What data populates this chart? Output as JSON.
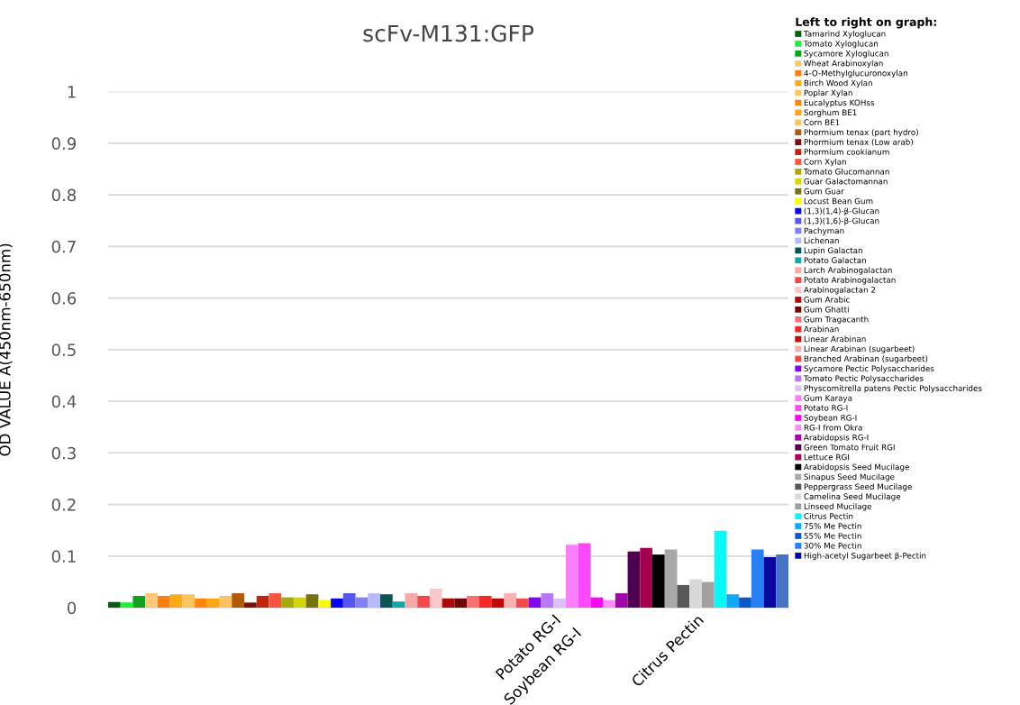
{
  "chart_data": {
    "type": "bar",
    "title": "scFv-M131:GFP",
    "ylabel": "OD VALUE A(450nm-650nm)",
    "legend_title": "Left to right on graph:",
    "legend": "right",
    "grid": "y",
    "categories": [
      null
    ],
    "ylim": [
      0,
      1
    ],
    "yticks": [
      0,
      0.1,
      0.2,
      0.3,
      0.4,
      0.5,
      0.6,
      0.7,
      0.8,
      0.9,
      1
    ],
    "annotations": [
      "Potato RG-I",
      "Soybean RG-I",
      "Citrus Pectin"
    ],
    "series": [
      {
        "name": "Tamarind Xyloglucan",
        "color": "#0b5a16",
        "values": [
          0.011
        ]
      },
      {
        "name": "Tomato Xyloglucan",
        "color": "#22ee33",
        "values": [
          0.01
        ]
      },
      {
        "name": "Sycamore Xyloglucan",
        "color": "#13a020",
        "values": [
          0.023
        ]
      },
      {
        "name": "Wheat Arabinoxylan",
        "color": "#fcc878",
        "values": [
          0.028
        ]
      },
      {
        "name": "4-O-Methylglucuronoxylan",
        "color": "#fd7f10",
        "values": [
          0.023
        ]
      },
      {
        "name": "Birch Wood Xylan",
        "color": "#fdaa15",
        "values": [
          0.026
        ]
      },
      {
        "name": "Poplar Xylan",
        "color": "#fdc462",
        "values": [
          0.026
        ]
      },
      {
        "name": "Eucalyptus KOHss",
        "color": "#fd8510",
        "values": [
          0.018
        ]
      },
      {
        "name": "Sorghum BE1",
        "color": "#fda615",
        "values": [
          0.018
        ]
      },
      {
        "name": "Corn BE1",
        "color": "#fcc264",
        "values": [
          0.023
        ]
      },
      {
        "name": "Phormium tenax (part hydro)",
        "color": "#b05a0a",
        "values": [
          0.028
        ]
      },
      {
        "name": "Phormium tenax (Low arab)",
        "color": "#7a1010",
        "values": [
          0.01
        ]
      },
      {
        "name": "Phormium cookianum",
        "color": "#c02510",
        "values": [
          0.023
        ]
      },
      {
        "name": "Corn Xylan",
        "color": "#f65540",
        "values": [
          0.028
        ]
      },
      {
        "name": "Tomato Glucomannan",
        "color": "#a8a808",
        "values": [
          0.02
        ]
      },
      {
        "name": "Guar Galactomannan",
        "color": "#d4d408",
        "values": [
          0.02
        ]
      },
      {
        "name": "Gum Guar",
        "color": "#737313",
        "values": [
          0.026
        ]
      },
      {
        "name": "Locust Bean Gum",
        "color": "#fafa08",
        "values": [
          0.015
        ]
      },
      {
        "name": "(1,3)(1,4)-β-Glucan",
        "color": "#0808f0",
        "values": [
          0.018
        ]
      },
      {
        "name": "(1,3)(1,6)-β-Glucan",
        "color": "#5555f5",
        "values": [
          0.028
        ]
      },
      {
        "name": "Pachyman",
        "color": "#8080f8",
        "values": [
          0.02
        ]
      },
      {
        "name": "Lichenan",
        "color": "#b8b8fa",
        "values": [
          0.028
        ]
      },
      {
        "name": "Lupin Galactan",
        "color": "#0b5555",
        "values": [
          0.026
        ]
      },
      {
        "name": "Potato Galactan",
        "color": "#10a8a8",
        "values": [
          0.012
        ]
      },
      {
        "name": "Larch Arabinogalactan",
        "color": "#f8a8a8",
        "values": [
          0.028
        ]
      },
      {
        "name": "Potato Arabinogalactan",
        "color": "#f54848",
        "values": [
          0.023
        ]
      },
      {
        "name": "Arabinogalactan 2",
        "color": "#fac8c8",
        "values": [
          0.037
        ]
      },
      {
        "name": "Gum Arabic",
        "color": "#b00808",
        "values": [
          0.018
        ]
      },
      {
        "name": "Gum Ghatti",
        "color": "#700808",
        "values": [
          0.018
        ]
      },
      {
        "name": "Gum Tragacanth",
        "color": "#f87070",
        "values": [
          0.023
        ]
      },
      {
        "name": "Arabinan",
        "color": "#f52828",
        "values": [
          0.023
        ]
      },
      {
        "name": "Linear Arabinan",
        "color": "#c00808",
        "values": [
          0.018
        ]
      },
      {
        "name": "Linear Arabinan (sugarbeet)",
        "color": "#f8b0b0",
        "values": [
          0.028
        ]
      },
      {
        "name": "Branched Arabinan (sugarbeet)",
        "color": "#f54848",
        "values": [
          0.018
        ]
      },
      {
        "name": "Sycamore Pectic Polysaccharides",
        "color": "#8008f5",
        "values": [
          0.02
        ]
      },
      {
        "name": "Tomato Pectic Polysaccharides",
        "color": "#b878f5",
        "values": [
          0.028
        ]
      },
      {
        "name": "Physcomitrella patens Pectic Polysaccharides",
        "color": "#dcc0fa",
        "values": [
          0.018
        ]
      },
      {
        "name": "Gum Karaya",
        "color": "#fa80fa",
        "values": [
          0.122
        ]
      },
      {
        "name": "Potato RG-I",
        "color": "#fa48fa",
        "values": [
          0.125
        ]
      },
      {
        "name": "Soybean RG-I",
        "color": "#f808f0",
        "values": [
          0.02
        ]
      },
      {
        "name": "RG-I from Okra",
        "color": "#f890f8",
        "values": [
          0.015
        ]
      },
      {
        "name": "Arabidopsis RG-I",
        "color": "#a008a8",
        "values": [
          0.028
        ]
      },
      {
        "name": "Green Tomato Fruit RGI",
        "color": "#500050",
        "values": [
          0.109
        ]
      },
      {
        "name": "Lettuce RGI",
        "color": "#a80050",
        "values": [
          0.116
        ]
      },
      {
        "name": "Arabidopsis Seed Mucilage",
        "color": "#000000",
        "values": [
          0.103
        ]
      },
      {
        "name": "Sinapus Seed Mucilage",
        "color": "#a8a8a8",
        "values": [
          0.113
        ]
      },
      {
        "name": "Peppergrass Seed Mucilage",
        "color": "#585858",
        "values": [
          0.044
        ]
      },
      {
        "name": "Camelina Seed Mucilage",
        "color": "#d8d8d8",
        "values": [
          0.055
        ]
      },
      {
        "name": "Linseed Mucilage",
        "color": "#a0a0a0",
        "values": [
          0.05
        ]
      },
      {
        "name": "Citrus Pectin",
        "color": "#08f8f8",
        "values": [
          0.149
        ]
      },
      {
        "name": "75% Me Pectin",
        "color": "#10a8f5",
        "values": [
          0.026
        ]
      },
      {
        "name": "55% Me Pectin",
        "color": "#0858c8",
        "values": [
          0.02
        ]
      },
      {
        "name": "30% Me Pectin",
        "color": "#2880f5",
        "values": [
          0.113
        ]
      },
      {
        "name": "High-acetyl Sugarbeet β-Pectin",
        "color": "#0808a0",
        "values": [
          0.098
        ]
      },
      {
        "color": "#4472c4",
        "values": [
          0.103
        ]
      }
    ]
  }
}
